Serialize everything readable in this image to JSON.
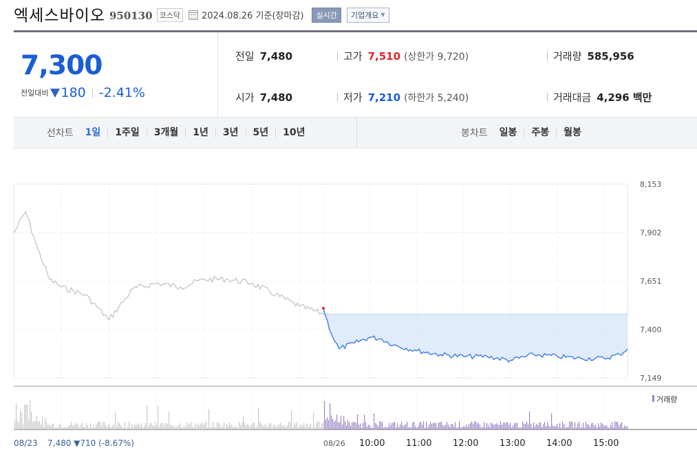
{
  "header": {
    "stock_name": "엑세스바이오",
    "stock_code": "950130",
    "market": "코스닥",
    "basis_date": "2024.08.26 기준(장마감)",
    "realtime_label": "실시간",
    "company_overview_label": "기업개요"
  },
  "price": {
    "current": "7,300",
    "change_label": "전일대비",
    "change_amount": "180",
    "change_percent": "-2.41%",
    "direction": "down"
  },
  "stats": {
    "prev_close_label": "전일",
    "prev_close": "7,480",
    "open_label": "시가",
    "open": "7,480",
    "high_label": "고가",
    "high": "7,510",
    "upper_limit": "(상한가 9,720)",
    "low_label": "저가",
    "low": "7,210",
    "lower_limit": "(하한가 5,240)",
    "volume_label": "거래량",
    "volume": "585,956",
    "amount_label": "거래대금",
    "amount": "4,296 백만"
  },
  "tabs": {
    "line_chart_label": "선차트",
    "line_periods": [
      "1일",
      "1주일",
      "3개월",
      "1년",
      "3년",
      "5년",
      "10년"
    ],
    "active_period": "1일",
    "candle_chart_label": "봉차트",
    "candle_periods": [
      "일봉",
      "주봉",
      "월봉"
    ]
  },
  "colors": {
    "price_blue": "#1a5dd6",
    "high_red": "#e0242c",
    "today_line": "#3d7be0",
    "today_fill": "#dbe8fa",
    "prev_line": "#c4c4c4",
    "volume_today": "#9a86c4"
  },
  "chart_data": {
    "type": "line",
    "y_ticks": [
      "8,153",
      "7,902",
      "7,651",
      "7,400",
      "7,149"
    ],
    "ylim": [
      7149,
      8153
    ],
    "reference_price": 7480,
    "x_labels": [
      "08/23",
      "08/26",
      "10:00",
      "11:00",
      "12:00",
      "13:00",
      "14:00",
      "15:00"
    ],
    "prev_day_summary": {
      "date": "08/23",
      "close": "7,480",
      "change": "710",
      "percent": "(-8.67%)"
    },
    "volume_legend": "거래량",
    "series": [
      {
        "day": "08/23",
        "x": [
          "09:00",
          "09:15",
          "09:30",
          "09:45",
          "10:00",
          "10:30",
          "11:00",
          "11:30",
          "12:00",
          "12:30",
          "13:00",
          "13:30",
          "14:00",
          "14:30",
          "15:00",
          "15:30"
        ],
        "y": [
          7900,
          8010,
          7820,
          7660,
          7620,
          7580,
          7450,
          7610,
          7640,
          7620,
          7660,
          7660,
          7640,
          7580,
          7520,
          7480
        ]
      },
      {
        "day": "08/26",
        "x": [
          "09:00",
          "09:10",
          "09:20",
          "09:40",
          "10:00",
          "10:15",
          "10:30",
          "11:00",
          "11:30",
          "12:00",
          "12:30",
          "13:00",
          "13:30",
          "14:00",
          "14:30",
          "15:00",
          "15:20",
          "15:30"
        ],
        "y": [
          7510,
          7380,
          7300,
          7330,
          7360,
          7350,
          7320,
          7290,
          7270,
          7260,
          7260,
          7240,
          7270,
          7260,
          7250,
          7250,
          7270,
          7300
        ]
      }
    ]
  }
}
